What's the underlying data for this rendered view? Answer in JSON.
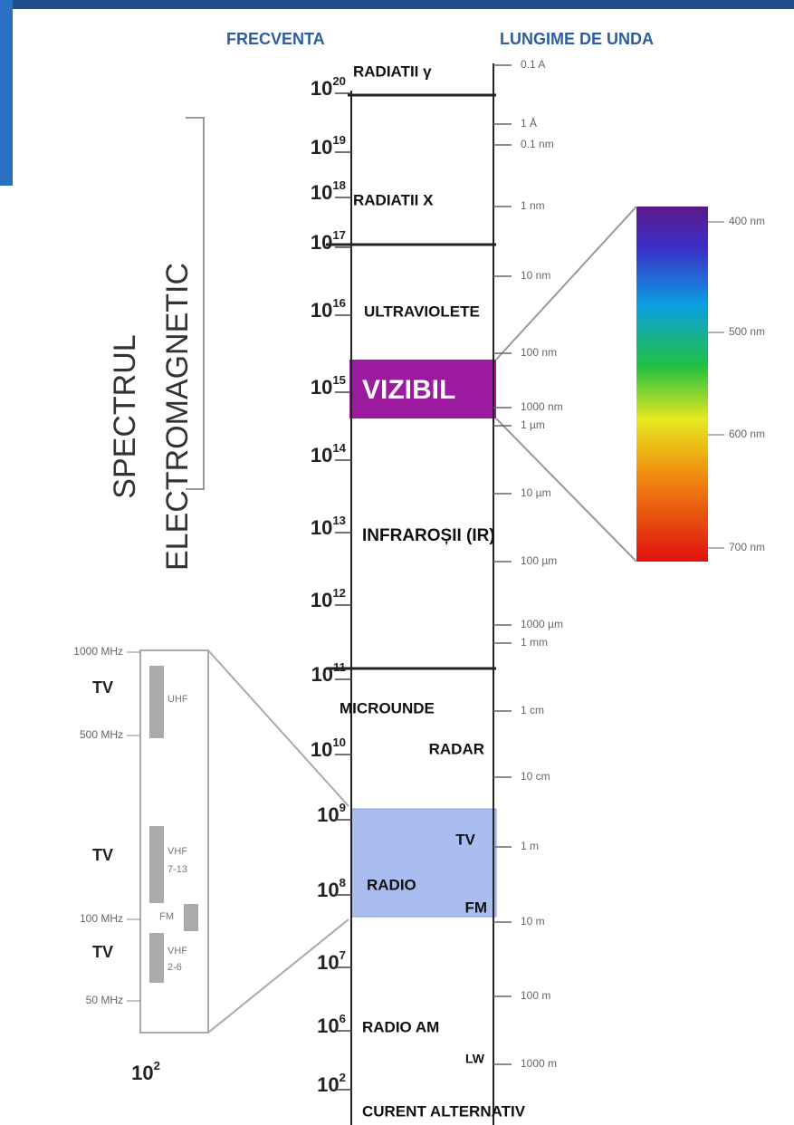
{
  "header": {
    "frequency": "FRECVENTA",
    "wavelength": "LUNGIME DE UNDA"
  },
  "title": [
    "SPECTRUL",
    "ELECTROMAGNETIC"
  ],
  "frequencies": [
    {
      "base": "10",
      "exp": "20"
    },
    {
      "base": "10",
      "exp": "19"
    },
    {
      "base": "10",
      "exp": "18"
    },
    {
      "base": "10",
      "exp": "17"
    },
    {
      "base": "10",
      "exp": "16"
    },
    {
      "base": "10",
      "exp": "15"
    },
    {
      "base": "10",
      "exp": "14"
    },
    {
      "base": "10",
      "exp": "13"
    },
    {
      "base": "10",
      "exp": "12"
    },
    {
      "base": "10",
      "exp": "11"
    },
    {
      "base": "10",
      "exp": "10"
    },
    {
      "base": "10",
      "exp": "9"
    },
    {
      "base": "10",
      "exp": "8"
    },
    {
      "base": "10",
      "exp": "7"
    },
    {
      "base": "10",
      "exp": "6"
    },
    {
      "base": "10",
      "exp": "2"
    }
  ],
  "bands": [
    "RADIATII γ",
    "RADIATII X",
    "ULTRAVIOLETE",
    "VIZIBIL",
    "INFRAROȘII (IR)",
    "MICROUNDE",
    "RADAR",
    "TV",
    "RADIO",
    "FM",
    "RADIO AM",
    "LW",
    "CURENT ALTERNATIV"
  ],
  "wavelengths": [
    "0.1 A",
    "1 Å",
    "0.1 nm",
    "1 nm",
    "10 nm",
    "100 nm",
    "1000 nm",
    "1 µm",
    "10 µm",
    "100 µm",
    "1000 µm",
    "1 mm",
    "1 cm",
    "10 cm",
    "1 m",
    "10 m",
    "100 m",
    "1000 m"
  ],
  "visible_scale": [
    "400 nm",
    "500 nm",
    "600 nm",
    "700 nm"
  ],
  "radio_inset": {
    "frequencies": [
      "1000 MHz",
      "500 MHz",
      "100 MHz",
      "50 MHz"
    ],
    "labels": [
      "TV",
      "UHF",
      "TV",
      "VHF",
      "7-13",
      "FM",
      "TV",
      "VHF",
      "2-6"
    ],
    "footer": {
      "base": "10",
      "exp": "2"
    }
  }
}
